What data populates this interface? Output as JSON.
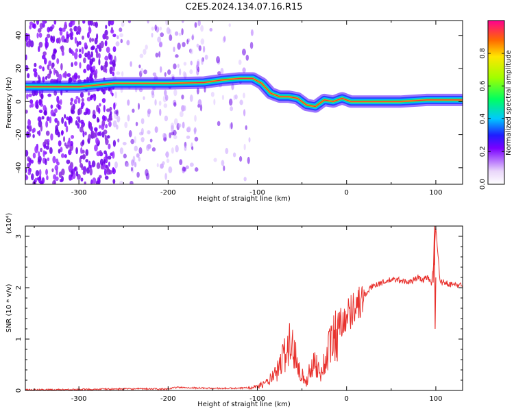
{
  "title": "C2E5.2024.134.07.16.R15",
  "chart_data": [
    {
      "type": "heatmap",
      "title": "C2E5.2024.134.07.16.R15",
      "xlabel": "Height of straight line (km)",
      "ylabel": "Frequency (Hz)",
      "xlim": [
        -360,
        130
      ],
      "ylim": [
        -50,
        49
      ],
      "x_ticks": [
        "-300",
        "-200",
        "-100",
        "0",
        "100"
      ],
      "y_ticks": [
        "-40",
        "-20",
        "0",
        "20",
        "40"
      ],
      "colorbar": {
        "label": "Normalized spectral amplitude",
        "range": [
          0,
          1
        ],
        "ticks": [
          "0.0",
          "0.2",
          "0.4",
          "0.6",
          "0.8"
        ]
      },
      "ridge": {
        "name": "dominant frequency",
        "x": [
          -360,
          -300,
          -260,
          -200,
          -160,
          -140,
          -120,
          -105,
          -95,
          -85,
          -75,
          -65,
          -55,
          -45,
          -35,
          -25,
          -15,
          -5,
          5,
          30,
          60,
          90,
          130
        ],
        "y": [
          9,
          9,
          11,
          11,
          11.5,
          13,
          14,
          14,
          11,
          5,
          3,
          3,
          2,
          -2,
          -3,
          1,
          0,
          2,
          0,
          0,
          0,
          1,
          1
        ]
      }
    },
    {
      "type": "line",
      "xlabel": "Height of straight line (km)",
      "ylabel": "SNR (10 * v/v)",
      "yscale_label": "(x10⁴)",
      "xlim": [
        -360,
        130
      ],
      "ylim": [
        0,
        3.2
      ],
      "x_ticks": [
        "-300",
        "-200",
        "-100",
        "0",
        "100"
      ],
      "y_ticks": [
        "0",
        "1",
        "2",
        "3"
      ],
      "series": [
        {
          "color": "#e8322e",
          "x": [
            -360,
            -300,
            -250,
            -200,
            -190,
            -150,
            -120,
            -100,
            -90,
            -80,
            -75,
            -70,
            -65,
            -60,
            -55,
            -50,
            -45,
            -40,
            -35,
            -30,
            -25,
            -20,
            -15,
            -10,
            -5,
            0,
            5,
            10,
            15,
            20,
            25,
            30,
            40,
            50,
            60,
            70,
            80,
            85,
            90,
            95,
            98,
            100,
            105,
            110,
            120,
            130
          ],
          "y": [
            0.01,
            0.02,
            0.03,
            0.03,
            0.06,
            0.04,
            0.04,
            0.08,
            0.15,
            0.3,
            0.45,
            0.7,
            0.9,
            0.8,
            0.6,
            0.3,
            0.15,
            0.45,
            0.6,
            0.3,
            0.5,
            0.8,
            1.0,
            1.2,
            1.4,
            1.45,
            1.55,
            1.7,
            1.7,
            1.85,
            1.95,
            2.05,
            2.1,
            2.15,
            2.15,
            2.1,
            2.2,
            2.15,
            2.2,
            2.1,
            2.5,
            3.2,
            2.1,
            2.1,
            2.05,
            2.05
          ]
        }
      ]
    }
  ]
}
